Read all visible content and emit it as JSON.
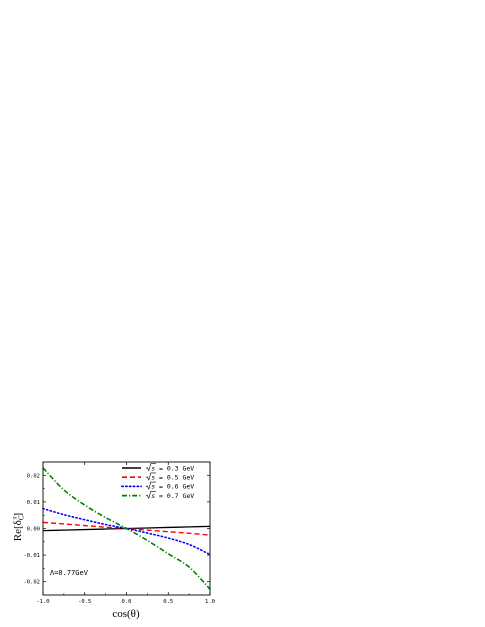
{
  "chart_data": {
    "type": "line",
    "xlabel": "cos(θ)",
    "ylabel_main": "Re[δ",
    "ylabel_sub": "C",
    "ylabel_sup": "π",
    "ylabel_end": "]",
    "xlim": [
      -1.0,
      1.0
    ],
    "ylim": [
      -0.025,
      0.025
    ],
    "xticks": [
      -1.0,
      -0.5,
      0.0,
      0.5,
      1.0
    ],
    "xtick_labels": [
      "-1.0",
      "-0.5",
      "0.0",
      "0.5",
      "1.0"
    ],
    "yticks": [
      -0.02,
      -0.01,
      0.0,
      0.01,
      0.02
    ],
    "ytick_labels": [
      "-0.02",
      "-0.01",
      "0.00",
      "0.01",
      "0.02"
    ],
    "grid": false,
    "legend_position": "top-right",
    "annotation": "Λ=0.77GeV",
    "x": [
      -1.0,
      -0.75,
      -0.5,
      -0.25,
      0.0,
      0.25,
      0.5,
      0.75,
      1.0
    ],
    "series": [
      {
        "name": "√s = 0.3 GeV",
        "legend_value": "= 0.3 GeV",
        "color": "#000000",
        "dash": "solid",
        "values": [
          -0.0008,
          -0.0006,
          -0.0004,
          -0.0002,
          0.0,
          0.0002,
          0.0004,
          0.0006,
          0.0008
        ]
      },
      {
        "name": "√s = 0.5 GeV",
        "legend_value": "= 0.5 GeV",
        "color": "#ff0000",
        "dash": "dash",
        "values": [
          0.0023,
          0.0017,
          0.0011,
          0.0005,
          0.0,
          -0.0006,
          -0.0012,
          -0.0018,
          -0.0025
        ]
      },
      {
        "name": "√s = 0.6 GeV",
        "legend_value": "= 0.6 GeV",
        "color": "#0000ff",
        "dash": "dot",
        "values": [
          0.0075,
          0.0052,
          0.0033,
          0.0015,
          0.0,
          -0.0017,
          -0.0036,
          -0.006,
          -0.0098
        ]
      },
      {
        "name": "√s = 0.7 GeV",
        "legend_value": "= 0.7 GeV",
        "color": "#008000",
        "dash": "dashdot",
        "values": [
          0.0228,
          0.0145,
          0.0088,
          0.0041,
          0.0,
          -0.0045,
          -0.0095,
          -0.0145,
          -0.0228
        ]
      }
    ]
  }
}
